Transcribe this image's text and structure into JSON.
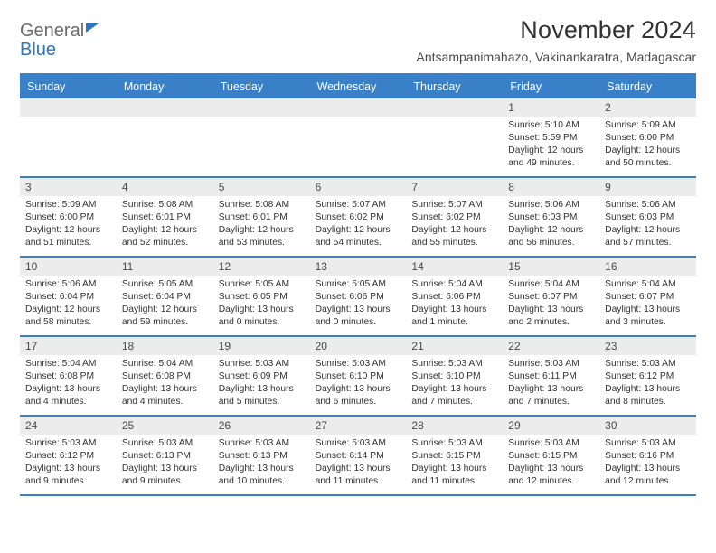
{
  "brand": {
    "word1": "General",
    "word2": "Blue"
  },
  "title": "November 2024",
  "location": "Antsampanimahazo, Vakinankaratra, Madagascar",
  "colors": {
    "header_bg": "#3a80c8",
    "header_text": "#ffffff",
    "brand_gray": "#6b6b6b",
    "brand_blue": "#2f75c1",
    "daynum_bg": "#ececec",
    "body_text": "#333333",
    "border": "#3a80c8"
  },
  "day_names": [
    "Sunday",
    "Monday",
    "Tuesday",
    "Wednesday",
    "Thursday",
    "Friday",
    "Saturday"
  ],
  "grid": {
    "cols": 7,
    "rows": 5,
    "first_weekday_index": 5,
    "days_in_month": 30
  },
  "days": [
    {
      "n": 1,
      "sunrise": "5:10 AM",
      "sunset": "5:59 PM",
      "daylight": "12 hours and 49 minutes."
    },
    {
      "n": 2,
      "sunrise": "5:09 AM",
      "sunset": "6:00 PM",
      "daylight": "12 hours and 50 minutes."
    },
    {
      "n": 3,
      "sunrise": "5:09 AM",
      "sunset": "6:00 PM",
      "daylight": "12 hours and 51 minutes."
    },
    {
      "n": 4,
      "sunrise": "5:08 AM",
      "sunset": "6:01 PM",
      "daylight": "12 hours and 52 minutes."
    },
    {
      "n": 5,
      "sunrise": "5:08 AM",
      "sunset": "6:01 PM",
      "daylight": "12 hours and 53 minutes."
    },
    {
      "n": 6,
      "sunrise": "5:07 AM",
      "sunset": "6:02 PM",
      "daylight": "12 hours and 54 minutes."
    },
    {
      "n": 7,
      "sunrise": "5:07 AM",
      "sunset": "6:02 PM",
      "daylight": "12 hours and 55 minutes."
    },
    {
      "n": 8,
      "sunrise": "5:06 AM",
      "sunset": "6:03 PM",
      "daylight": "12 hours and 56 minutes."
    },
    {
      "n": 9,
      "sunrise": "5:06 AM",
      "sunset": "6:03 PM",
      "daylight": "12 hours and 57 minutes."
    },
    {
      "n": 10,
      "sunrise": "5:06 AM",
      "sunset": "6:04 PM",
      "daylight": "12 hours and 58 minutes."
    },
    {
      "n": 11,
      "sunrise": "5:05 AM",
      "sunset": "6:04 PM",
      "daylight": "12 hours and 59 minutes."
    },
    {
      "n": 12,
      "sunrise": "5:05 AM",
      "sunset": "6:05 PM",
      "daylight": "13 hours and 0 minutes."
    },
    {
      "n": 13,
      "sunrise": "5:05 AM",
      "sunset": "6:06 PM",
      "daylight": "13 hours and 0 minutes."
    },
    {
      "n": 14,
      "sunrise": "5:04 AM",
      "sunset": "6:06 PM",
      "daylight": "13 hours and 1 minute."
    },
    {
      "n": 15,
      "sunrise": "5:04 AM",
      "sunset": "6:07 PM",
      "daylight": "13 hours and 2 minutes."
    },
    {
      "n": 16,
      "sunrise": "5:04 AM",
      "sunset": "6:07 PM",
      "daylight": "13 hours and 3 minutes."
    },
    {
      "n": 17,
      "sunrise": "5:04 AM",
      "sunset": "6:08 PM",
      "daylight": "13 hours and 4 minutes."
    },
    {
      "n": 18,
      "sunrise": "5:04 AM",
      "sunset": "6:08 PM",
      "daylight": "13 hours and 4 minutes."
    },
    {
      "n": 19,
      "sunrise": "5:03 AM",
      "sunset": "6:09 PM",
      "daylight": "13 hours and 5 minutes."
    },
    {
      "n": 20,
      "sunrise": "5:03 AM",
      "sunset": "6:10 PM",
      "daylight": "13 hours and 6 minutes."
    },
    {
      "n": 21,
      "sunrise": "5:03 AM",
      "sunset": "6:10 PM",
      "daylight": "13 hours and 7 minutes."
    },
    {
      "n": 22,
      "sunrise": "5:03 AM",
      "sunset": "6:11 PM",
      "daylight": "13 hours and 7 minutes."
    },
    {
      "n": 23,
      "sunrise": "5:03 AM",
      "sunset": "6:12 PM",
      "daylight": "13 hours and 8 minutes."
    },
    {
      "n": 24,
      "sunrise": "5:03 AM",
      "sunset": "6:12 PM",
      "daylight": "13 hours and 9 minutes."
    },
    {
      "n": 25,
      "sunrise": "5:03 AM",
      "sunset": "6:13 PM",
      "daylight": "13 hours and 9 minutes."
    },
    {
      "n": 26,
      "sunrise": "5:03 AM",
      "sunset": "6:13 PM",
      "daylight": "13 hours and 10 minutes."
    },
    {
      "n": 27,
      "sunrise": "5:03 AM",
      "sunset": "6:14 PM",
      "daylight": "13 hours and 11 minutes."
    },
    {
      "n": 28,
      "sunrise": "5:03 AM",
      "sunset": "6:15 PM",
      "daylight": "13 hours and 11 minutes."
    },
    {
      "n": 29,
      "sunrise": "5:03 AM",
      "sunset": "6:15 PM",
      "daylight": "13 hours and 12 minutes."
    },
    {
      "n": 30,
      "sunrise": "5:03 AM",
      "sunset": "6:16 PM",
      "daylight": "13 hours and 12 minutes."
    }
  ],
  "labels": {
    "sunrise": "Sunrise:",
    "sunset": "Sunset:",
    "daylight": "Daylight:"
  }
}
